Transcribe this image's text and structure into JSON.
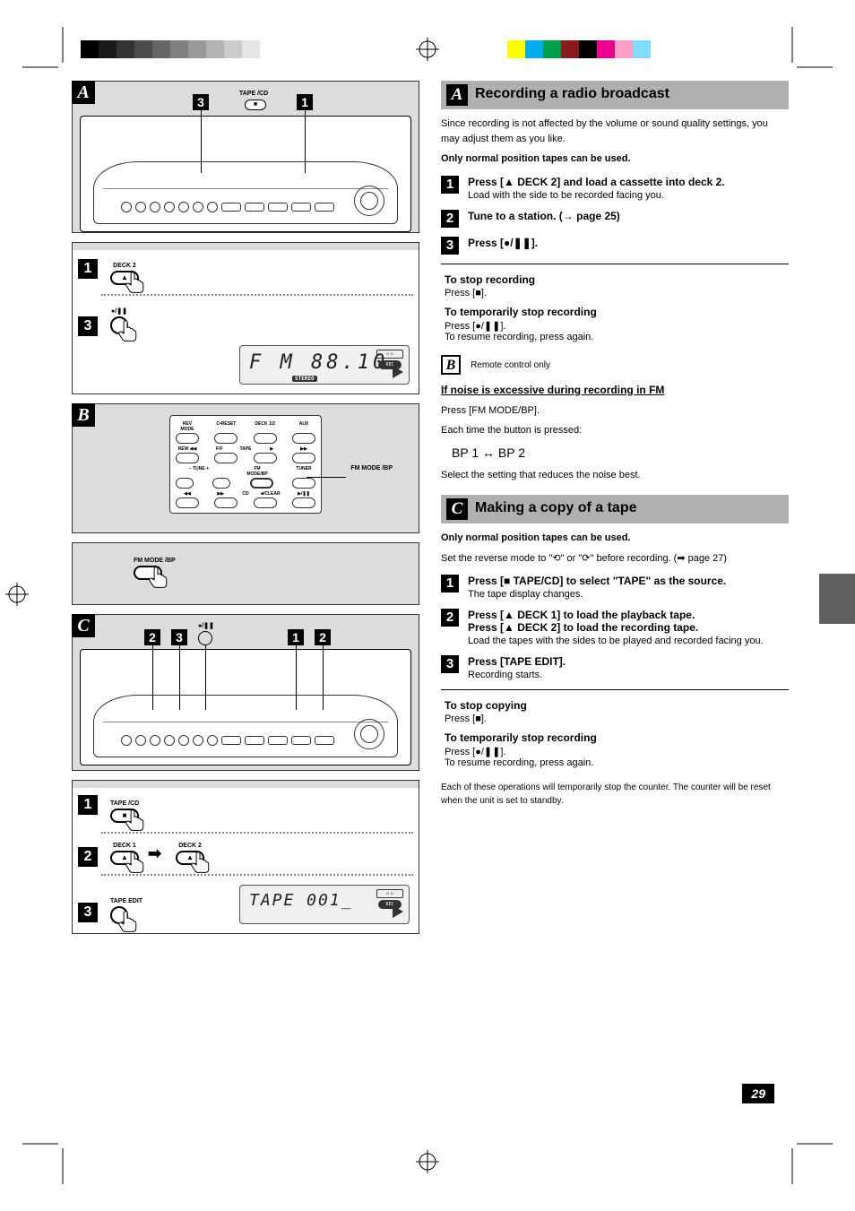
{
  "colorbars": {
    "left": [
      "#000000",
      "#1a1a1a",
      "#333333",
      "#4d4d4d",
      "#666666",
      "#808080",
      "#999999",
      "#b3b3b3",
      "#cccccc",
      "#e6e6e6",
      "#ffffff"
    ],
    "right": [
      "#ffff00",
      "#00aeef",
      "#009e49",
      "#8b1a1a",
      "#000000",
      "#ec008c",
      "#ff9ec6",
      "#7fdbff",
      "#ffffff"
    ]
  },
  "left": {
    "A": {
      "tag": "A",
      "callouts": {
        "c1": "3",
        "c2": "1"
      },
      "btnLabel1": "TAPE /CD",
      "sub": {
        "step1": {
          "num": "1",
          "btn": "DECK 2"
        },
        "step3": {
          "num": "3",
          "btn": "●/❚❚"
        },
        "lcd": {
          "main": "F M   88.10",
          "stereo": "STEREO"
        }
      }
    },
    "B": {
      "tag": "B",
      "remote": {
        "row1": [
          "REV MODE",
          "C•RESET",
          "DECK 1/2",
          "AUX"
        ],
        "row2mid": "TAPE",
        "row2lbl": [
          "REW ◀◀",
          "F/F",
          "▶",
          "▶▶"
        ],
        "row3": [
          "–  TUNE  +",
          "FM MODE/BP",
          "TUNER"
        ],
        "row4mid": "CD",
        "row4lbl": [
          "◀◀",
          "▶▶",
          "■/CLEAR",
          "▶/❚❚"
        ]
      },
      "callout": "FM MODE /BP",
      "sub": {
        "btn": "FM MODE /BP"
      }
    },
    "C": {
      "tag": "C",
      "callouts": {
        "c1": "2",
        "c2": "3",
        "c3": "1",
        "c4": "2"
      },
      "topBtnLabel": "●/❚❚",
      "sub": {
        "step1": {
          "num": "1",
          "btn": "TAPE /CD"
        },
        "step2": {
          "num": "2",
          "btn1": "DECK 1",
          "btn2": "DECK 2"
        },
        "step3": {
          "num": "3",
          "btn": "TAPE EDIT"
        },
        "lcd": {
          "main": "TAPE  001_"
        }
      }
    }
  },
  "right": {
    "A": {
      "tag": "A",
      "title": "Recording a radio broadcast",
      "intro": "Since recording is not affected by the volume or sound quality settings, you may adjust them as you like.",
      "noteTape": "Only normal position tapes can be used.",
      "step1": {
        "num": "1",
        "body": "Press [▲ DECK 2] and load a cassette into deck 2.",
        "note": "Load with the side to be recorded facing you."
      },
      "step2": {
        "num": "2",
        "body": "Tune to a station. (→ page 25)"
      },
      "step3": {
        "num": "3",
        "body": "Press [●/❚❚]."
      },
      "stop": {
        "title": "To stop recording",
        "body": "Press [■]."
      },
      "pause": {
        "title": "To temporarily stop recording",
        "body": "Press [●/❚❚].\nTo resume recording, press again."
      }
    },
    "B": {
      "tag": "B",
      "line1": "Remote control only",
      "une": "If noise is excessive during recording in FM",
      "body1": "Press [FM MODE/BP].",
      "body2": "Each time the button is pressed:",
      "toggle": "BP 1 ↔ BP 2",
      "body3": "Select the setting that reduces the noise best."
    },
    "C": {
      "tag": "C",
      "title": "Making a copy of a tape",
      "note1": "Only normal position tapes can be used.",
      "note2": "Set the reverse mode to \"⟲\" or \"⟳\" before recording. (➡ page 27)",
      "step1": {
        "num": "1",
        "body": "Press [■ TAPE/CD] to select \"TAPE\" as the source.",
        "note": "The tape display changes."
      },
      "step2": {
        "num": "2",
        "body": "Press [▲ DECK 1] to load the playback tape.\nPress [▲ DECK 2] to load the recording tape.",
        "note": "Load the tapes with the sides to be played and recorded facing you."
      },
      "step3": {
        "num": "3",
        "body": "Press [TAPE EDIT].",
        "note": "Recording starts."
      },
      "stop": {
        "title": "To stop copying",
        "body": "Press [■]."
      },
      "pause": {
        "title": "To temporarily stop recording",
        "body": "Press [●/❚❚].\nTo resume recording, press again."
      },
      "footnote": "Each of these operations will temporarily stop the counter. The counter will be reset when the unit is set to standby."
    }
  },
  "pageNum": "29"
}
